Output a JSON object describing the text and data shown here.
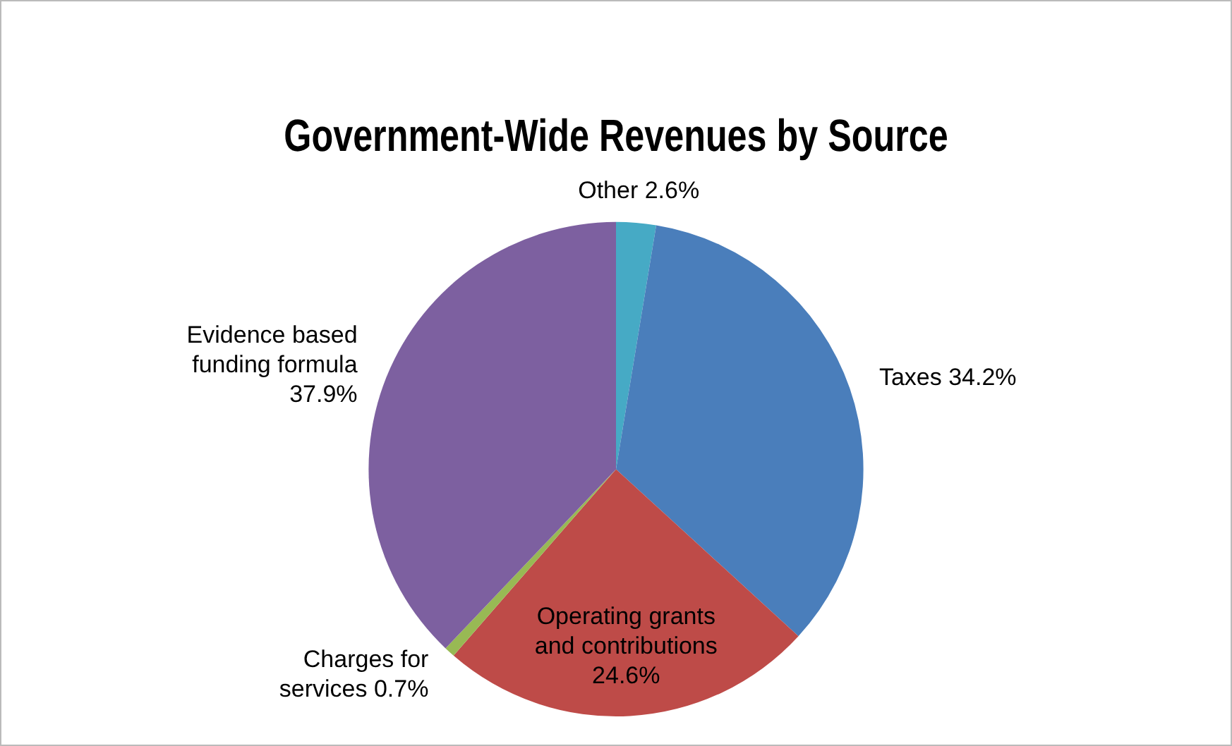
{
  "chart_data": {
    "type": "pie",
    "title": "Government-Wide Revenues by Source",
    "categories": [
      "Other",
      "Taxes",
      "Operating grants and contributions",
      "Charges for services",
      "Evidence based funding formula"
    ],
    "values": [
      2.6,
      34.2,
      24.6,
      0.7,
      37.9
    ],
    "colors": [
      "#46aac5",
      "#4a7ebb",
      "#be4b48",
      "#98b954",
      "#7d60a0"
    ],
    "value_labels": [
      "2.6%",
      "34.2%",
      "24.6%",
      "0.7%",
      "37.9%"
    ],
    "legend": false
  }
}
